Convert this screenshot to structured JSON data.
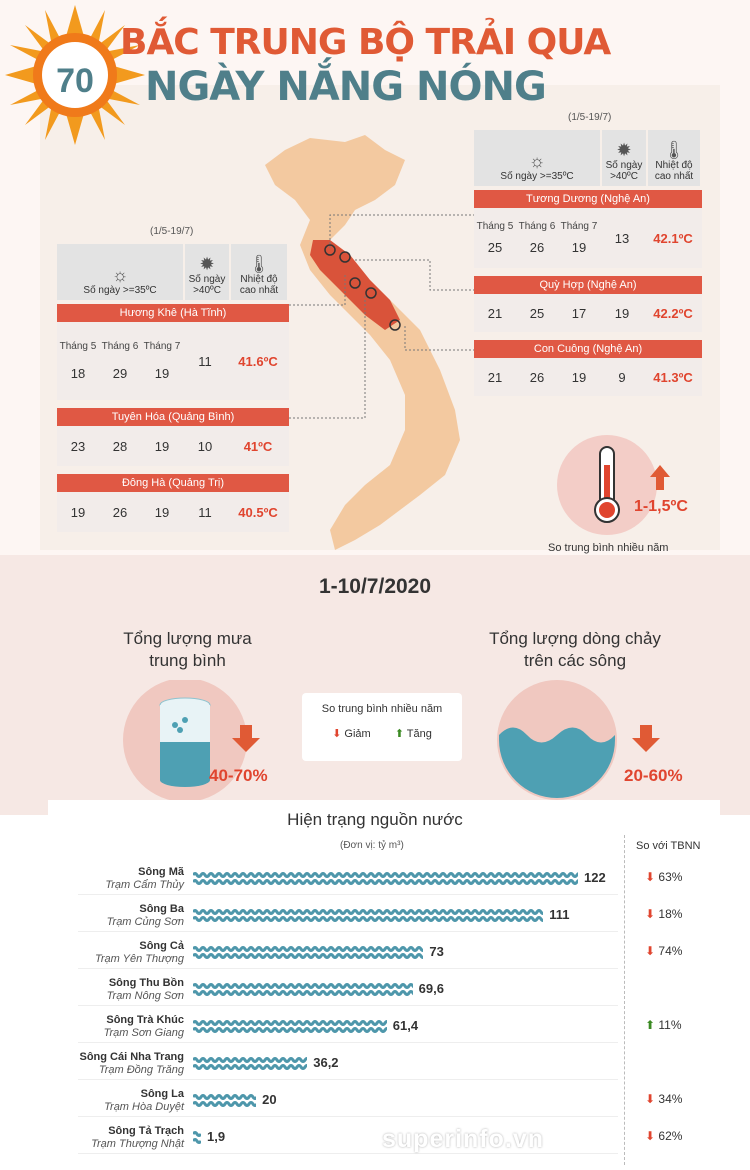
{
  "title": {
    "line1": "BẮC TRUNG BỘ TRẢI QUA",
    "line2": "NGÀY NẮNG NÓNG",
    "badge": "70"
  },
  "left_block": {
    "date_range": "(1/5-19/7)",
    "headers": {
      "days35": "Số ngày >=35ºC",
      "days40": "Số ngày >40ºC",
      "max": "Nhiệt độ cao nhất"
    },
    "months": [
      "Tháng 5",
      "Tháng 6",
      "Tháng 7"
    ],
    "stations": [
      {
        "name": "Hương Khê (Hà Tĩnh)",
        "m5": "18",
        "m6": "29",
        "m7": "19",
        "d40": "11",
        "max": "41.6ºC"
      },
      {
        "name": "Tuyên Hóa (Quảng Bình)",
        "m5": "23",
        "m6": "28",
        "m7": "19",
        "d40": "10",
        "max": "41ºC"
      },
      {
        "name": "Đông Hà (Quảng Trị)",
        "m5": "19",
        "m6": "26",
        "m7": "19",
        "d40": "11",
        "max": "40.5ºC"
      }
    ]
  },
  "right_block": {
    "date_range": "(1/5-19/7)",
    "headers": {
      "days35": "Số ngày >=35ºC",
      "days40": "Số ngày >40ºC",
      "max": "Nhiệt độ cao nhất"
    },
    "months": [
      "Tháng 5",
      "Tháng 6",
      "Tháng 7"
    ],
    "stations": [
      {
        "name": "Tương Dương (Nghệ An)",
        "m5": "25",
        "m6": "26",
        "m7": "19",
        "d40": "13",
        "max": "42.1ºC"
      },
      {
        "name": "Quỳ Hợp (Nghệ An)",
        "m5": "21",
        "m6": "25",
        "m7": "17",
        "d40": "19",
        "max": "42.2ºC"
      },
      {
        "name": "Con Cuông (Nghệ An)",
        "m5": "21",
        "m6": "26",
        "m7": "19",
        "d40": "9",
        "max": "41.3ºC"
      }
    ]
  },
  "temp_badge": {
    "value": "1-1,5ºC",
    "caption": "So trung bình nhiều năm"
  },
  "mid": {
    "date": "1-10/7/2020",
    "rain_label_1": "Tổng lượng mưa",
    "rain_label_2": "trung bình",
    "rain_pct": "40-70%",
    "flow_label_1": "Tổng lượng dòng chảy",
    "flow_label_2": "trên các sông",
    "flow_pct": "20-60%",
    "legend_title": "So trung bình nhiều năm",
    "legend_down": "Giảm",
    "legend_up": "Tăng"
  },
  "water": {
    "title": "Hiện trạng nguồn nước",
    "unit": "(Đơn vị: tỷ m³)",
    "compare_header": "So với TBNN",
    "watermark": "superinfo.vn"
  },
  "chart_data": {
    "type": "bar",
    "title": "Hiện trạng nguồn nước",
    "categories": [
      "Sông Mã",
      "Sông Ba",
      "Sông Cả",
      "Sông Thu Bồn",
      "Sông Trà Khúc",
      "Sông Cái Nha Trang",
      "Sông La",
      "Sông Tả Trạch"
    ],
    "stations": [
      "Trạm Cẩm Thủy",
      "Trạm Củng Sơn",
      "Trạm Yên Thượng",
      "Trạm Nông Sơn",
      "Trạm Sơn Giang",
      "Trạm Đồng Trăng",
      "Trạm Hòa Duyệt",
      "Trạm Thượng Nhật"
    ],
    "values": [
      122,
      111,
      73,
      69.6,
      61.4,
      36.2,
      20,
      1.9
    ],
    "value_labels": [
      "122",
      "111",
      "73",
      "69,6",
      "61,4",
      "36,2",
      "20",
      "1,9"
    ],
    "compare": [
      "63%",
      "18%",
      "74%",
      "",
      "11%",
      "",
      "34%",
      "62%"
    ],
    "compare_dir": [
      "down",
      "down",
      "down",
      "",
      "up",
      "",
      "down",
      "down"
    ],
    "xlim": [
      0,
      122
    ]
  }
}
